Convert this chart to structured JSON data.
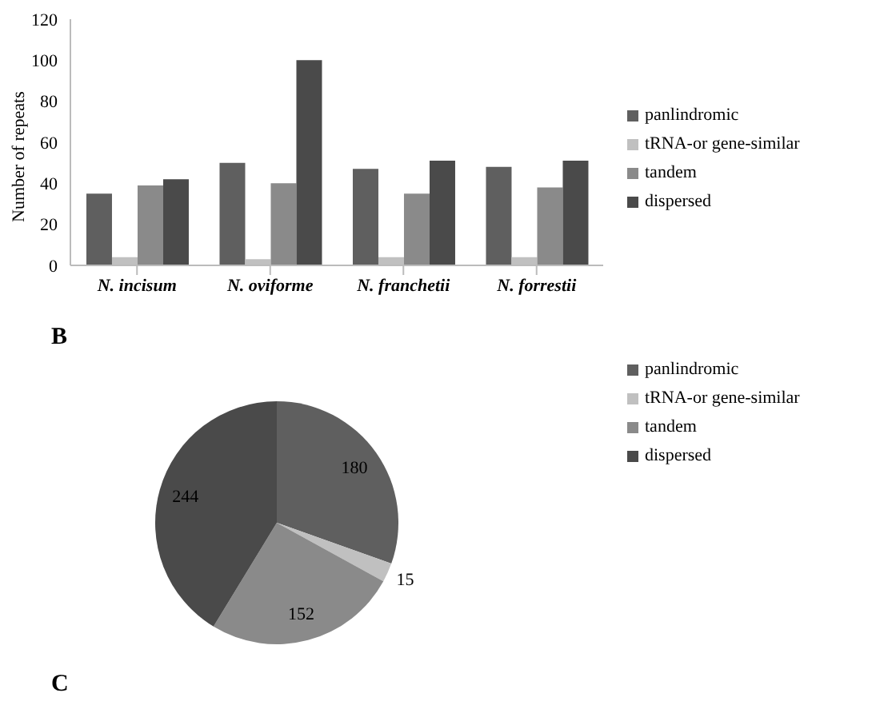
{
  "chart_data": [
    {
      "type": "bar",
      "ylabel": "Number of repeats",
      "categories": [
        "N. incisum",
        "N. oviforme",
        "N. franchetii",
        "N. forrestii"
      ],
      "ylim": [
        0,
        120
      ],
      "yticks": [
        0,
        20,
        40,
        60,
        80,
        100,
        120
      ],
      "grid": false,
      "legend": "right",
      "annotations": [
        "B"
      ],
      "series": [
        {
          "name": "panlindromic",
          "color": "#5f5f5f",
          "values": [
            35,
            50,
            47,
            48
          ]
        },
        {
          "name": "tRNA-or gene-similar",
          "color": "#c0c0c0",
          "values": [
            4,
            3,
            4,
            4
          ]
        },
        {
          "name": "tandem",
          "color": "#8a8a8a",
          "values": [
            39,
            40,
            35,
            38
          ]
        },
        {
          "name": "dispersed",
          "color": "#4a4a4a",
          "values": [
            42,
            100,
            51,
            51
          ]
        }
      ]
    },
    {
      "type": "pie",
      "categories": [
        "panlindromic",
        "tRNA-or gene-similar",
        "tandem",
        "dispersed"
      ],
      "values": [
        180,
        15,
        152,
        244
      ],
      "colors": [
        "#5f5f5f",
        "#c0c0c0",
        "#8a8a8a",
        "#4a4a4a"
      ],
      "data_labels": true,
      "legend": "top right",
      "annotations": [
        "C"
      ]
    }
  ]
}
